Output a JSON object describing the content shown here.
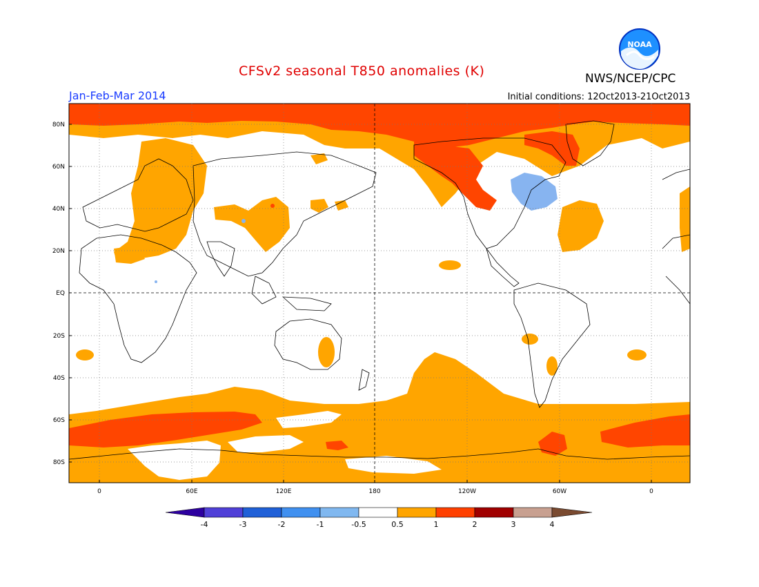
{
  "header": {
    "title": "CFSv2 seasonal T850 anomalies (K)",
    "period": "Jan-Feb-Mar 2014",
    "initial_conditions": "Initial conditions: 12Oct2013-21Oct2013",
    "agency": "NWS/NCEP/CPC",
    "logo_text": "NOAA"
  },
  "map": {
    "lat_labels": [
      "80N",
      "60N",
      "40N",
      "20N",
      "EQ",
      "20S",
      "40S",
      "60S",
      "80S"
    ],
    "lon_labels": [
      "0",
      "60E",
      "120E",
      "180",
      "120W",
      "60W",
      "0"
    ],
    "colors": {
      "ocean_land_base": "#ffffff",
      "anom_0_5_1": "#ffa500",
      "anom_1_2": "#ff4500",
      "anom_neg_0_5_neg_1": "#87b4f0",
      "coastline": "#000000"
    }
  },
  "colorbar": {
    "labels": [
      "-4",
      "-3",
      "-2",
      "-1",
      "-0.5",
      "0.5",
      "1",
      "2",
      "3",
      "4"
    ],
    "colors": [
      "#2d00a0",
      "#5040d8",
      "#2060d8",
      "#4090f0",
      "#80b8f0",
      "#ffffff",
      "#ffa500",
      "#ff4000",
      "#a00000",
      "#c8a090",
      "#7a4a30"
    ]
  }
}
